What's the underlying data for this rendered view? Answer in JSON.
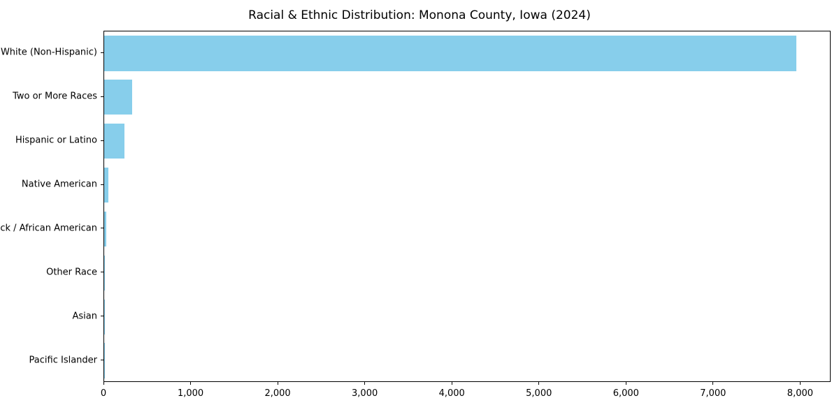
{
  "title": "Racial & Ethnic Distribution: Monona County, Iowa (2024)",
  "colors": {
    "bar": "#87CEEB",
    "axis": "#000000",
    "background": "#FFFFFF"
  },
  "chart_data": {
    "type": "bar",
    "orientation": "horizontal",
    "title": "Racial & Ethnic Distribution: Monona County, Iowa (2024)",
    "xlabel": "",
    "ylabel": "",
    "categories": [
      "White (Non-Hispanic)",
      "Two or More Races",
      "Hispanic or Latino",
      "Native American",
      "Black / African American",
      "Other Race",
      "Asian",
      "Pacific Islander"
    ],
    "values": [
      7950,
      320,
      230,
      45,
      22,
      6,
      5,
      1
    ],
    "xlim": [
      0,
      8350
    ],
    "x_ticks": [
      0,
      1000,
      2000,
      3000,
      4000,
      5000,
      6000,
      7000,
      8000
    ],
    "x_tick_labels": [
      "0",
      "1,000",
      "2,000",
      "3,000",
      "4,000",
      "5,000",
      "6,000",
      "7,000",
      "8,000"
    ],
    "grid": false,
    "legend_position": "none",
    "bar_color": "#87CEEB"
  }
}
